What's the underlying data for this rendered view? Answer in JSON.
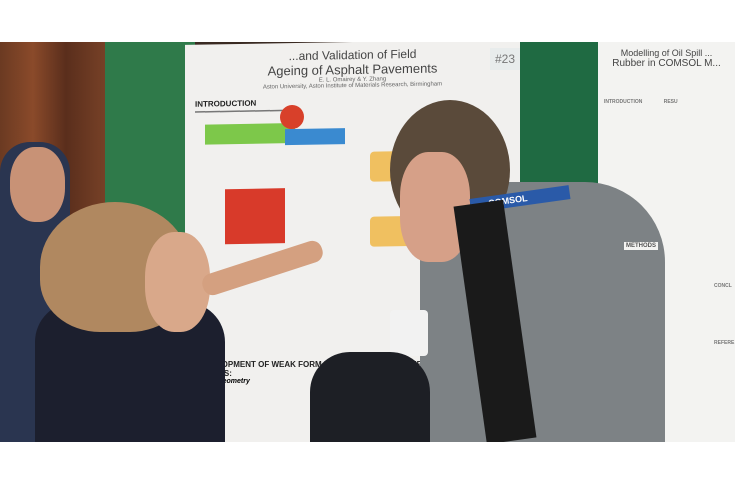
{
  "poster_left": {
    "title_line1": "...and Validation of Field",
    "title_line2": "Ageing of Asphalt Pavements",
    "authors": "E. L. Omairey & Y. Zhang",
    "affiliation": "Aston University, Aston Institute of Materials Research, Birmingham",
    "intro_heading": "INTRODUCTION",
    "section_heading": "DEVELOPMENT OF WEAK FORM EQUATION-BASED NUMERICAL MODELS:",
    "subheading": "Model Geometry",
    "tag": "#23"
  },
  "poster_right": {
    "title_line1": "Modelling of Oil Spill ...",
    "title_line2": "Rubber in COMSOL M...",
    "intro_label": "INTRODUCTION",
    "results_label": "RESU",
    "methods_label": "METHODS",
    "conclusion_label": "CONCL",
    "references_label": "REFERE"
  },
  "lanyard_text": "COMSOL"
}
